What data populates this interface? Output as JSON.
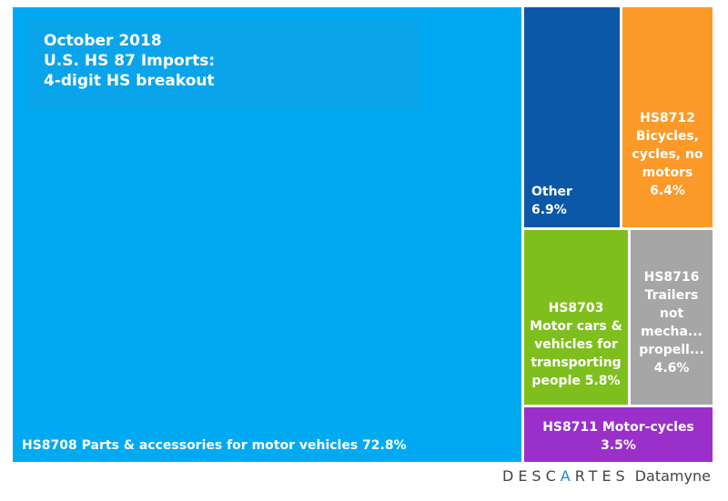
{
  "chart_data": {
    "type": "treemap",
    "title": [
      "October 2018",
      "U.S. HS 87 Imports:",
      "4-digit HS breakout"
    ],
    "items": [
      {
        "name": "HS8708 Parts & accessories for motor vehicles",
        "value": 72.8,
        "label": "72.8%",
        "color": "#00aaf2"
      },
      {
        "name": "Other",
        "value": 6.9,
        "label": "6.9%",
        "color": "#0b57a8"
      },
      {
        "name": "HS8712 Bicycles, cycles, no motors",
        "value": 6.4,
        "label": "6.4%",
        "color": "#fb9a28"
      },
      {
        "name": "HS8703 Motor cars & vehicles for transporting people",
        "value": 5.8,
        "label": "5.8%",
        "color": "#7fbf1d"
      },
      {
        "name": "HS8716 Trailers not mecha... propell...",
        "value": 4.6,
        "label": "4.6%",
        "color": "#a6a6a6"
      },
      {
        "name": "HS8711 Motor-cycles",
        "value": 3.5,
        "label": "3.5%",
        "color": "#9b2fc9"
      }
    ],
    "display_lines": [
      [
        "HS8708 Parts & accessories for motor vehicles 72.8%"
      ],
      [
        "Other",
        "6.9%"
      ],
      [
        "HS8712",
        "Bicycles,",
        "cycles, no",
        "motors",
        "6.4%"
      ],
      [
        "HS8703",
        "Motor cars &",
        "vehicles for",
        "transporting",
        "people 5.8%"
      ],
      [
        "HS8716",
        "Trailers",
        "not",
        "mecha...",
        "propell...",
        "4.6%"
      ],
      [
        "HS8711 Motor-cycles",
        "3.5%"
      ]
    ]
  },
  "logo": {
    "pre": "DESC",
    "mark": "A",
    "post": "RTES",
    "product": "Datamyne"
  }
}
